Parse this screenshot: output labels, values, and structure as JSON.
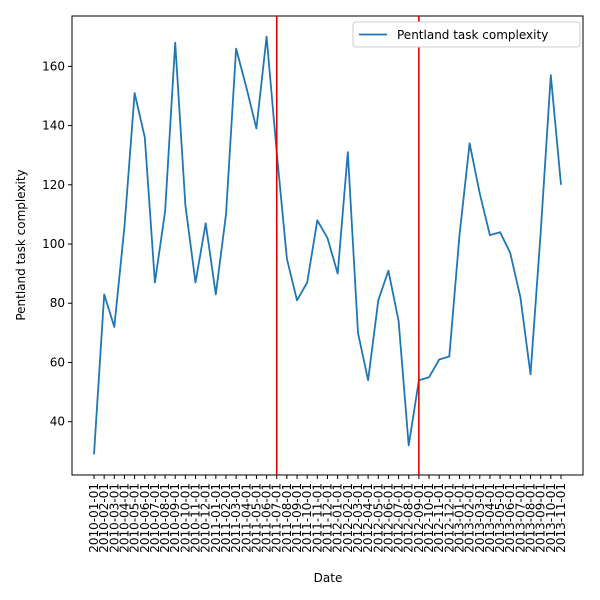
{
  "chart_data": {
    "type": "line",
    "xlabel": "Date",
    "ylabel": "Pentland task complexity",
    "x": [
      "2010-01-01",
      "2010-02-01",
      "2010-03-01",
      "2010-04-01",
      "2010-05-01",
      "2010-06-01",
      "2010-07-01",
      "2010-08-01",
      "2010-09-01",
      "2010-10-01",
      "2010-11-01",
      "2010-12-01",
      "2011-01-01",
      "2011-02-01",
      "2011-03-01",
      "2011-04-01",
      "2011-05-01",
      "2011-06-01",
      "2011-07-01",
      "2011-08-01",
      "2011-09-01",
      "2011-10-01",
      "2011-11-01",
      "2011-12-01",
      "2012-01-01",
      "2012-02-01",
      "2012-03-01",
      "2012-04-01",
      "2012-05-01",
      "2012-06-01",
      "2012-07-01",
      "2012-08-01",
      "2012-09-01",
      "2012-10-01",
      "2012-11-01",
      "2012-12-01",
      "2013-01-01",
      "2013-02-01",
      "2013-03-01",
      "2013-04-01",
      "2013-05-01",
      "2013-06-01",
      "2013-07-01",
      "2013-08-01",
      "2013-09-01",
      "2013-10-01",
      "2013-11-01"
    ],
    "series": [
      {
        "name": "Pentland task complexity",
        "color": "#1f77b4",
        "values": [
          29,
          83,
          72,
          106,
          151,
          136,
          87,
          111,
          168,
          113,
          87,
          107,
          83,
          110,
          166,
          153,
          139,
          170,
          131,
          95,
          81,
          87,
          108,
          102,
          90,
          131,
          70,
          54,
          81,
          91,
          74,
          32,
          54,
          55,
          61,
          62,
          103,
          134,
          117,
          103,
          104,
          97,
          82,
          56,
          104,
          157,
          120
        ]
      }
    ],
    "vlines": {
      "color": "#e00000",
      "x": [
        "2011-07-01",
        "2012-09-01"
      ]
    },
    "yticks": [
      40,
      60,
      80,
      100,
      120,
      140,
      160
    ],
    "ylim": [
      22,
      177
    ],
    "grid": false,
    "legend": "top-right"
  }
}
